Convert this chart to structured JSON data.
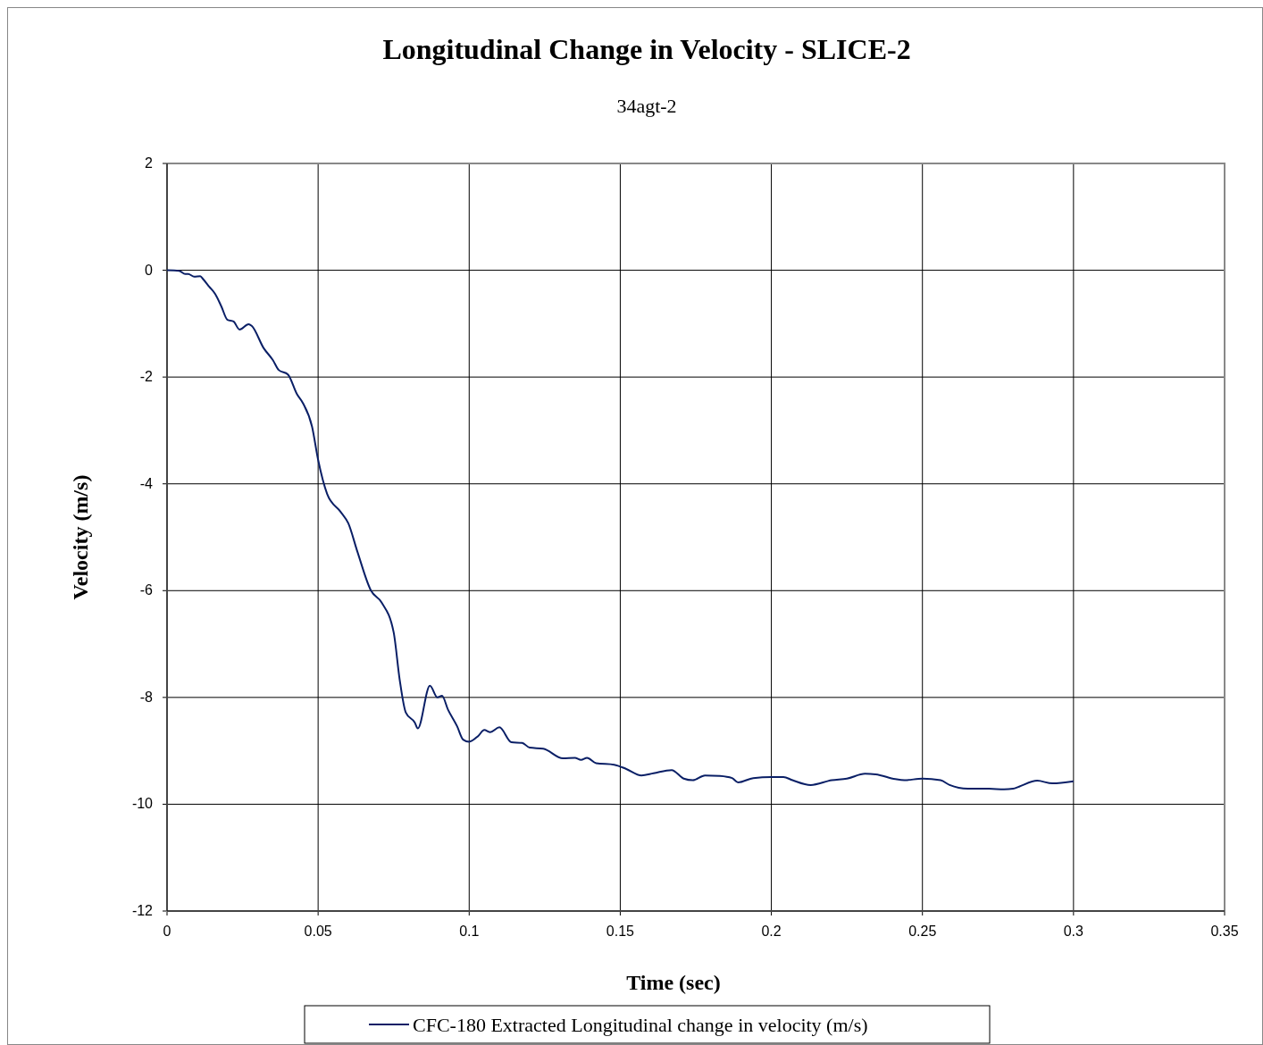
{
  "chart_data": {
    "type": "line",
    "title": "Longitudinal Change in Velocity - SLICE-2",
    "subtitle": "34agt-2",
    "xlabel": "Time (sec)",
    "ylabel": "Velocity (m/s)",
    "xlim": [
      0,
      0.35
    ],
    "xticks": [
      0,
      0.05,
      0.1,
      0.15,
      0.2,
      0.25,
      0.3,
      0.35
    ],
    "ylim": [
      -12,
      2
    ],
    "yticks": [
      -12,
      -10,
      -8,
      -6,
      -4,
      -2,
      0,
      2
    ],
    "grid": true,
    "legend": "bottom",
    "line_style": "solid",
    "series": [
      {
        "name": "CFC-180 Extracted Longitudinal change in velocity (m/s)",
        "color": "#0a1f66",
        "x": [
          0,
          0.004,
          0.006,
          0.007,
          0.009,
          0.011,
          0.012,
          0.014,
          0.016,
          0.018,
          0.02,
          0.022,
          0.024,
          0.027,
          0.028,
          0.032,
          0.035,
          0.037,
          0.04,
          0.043,
          0.045,
          0.048,
          0.05,
          0.053,
          0.0574,
          0.06,
          0.063,
          0.0675,
          0.071,
          0.075,
          0.077,
          0.079,
          0.082,
          0.083,
          0.087,
          0.0895,
          0.091,
          0.093,
          0.096,
          0.098,
          0.1,
          0.103,
          0.105,
          0.107,
          0.11,
          0.114,
          0.1175,
          0.12,
          0.1245,
          0.131,
          0.135,
          0.137,
          0.139,
          0.142,
          0.148,
          0.152,
          0.157,
          0.161,
          0.167,
          0.171,
          0.174,
          0.178,
          0.183,
          0.187,
          0.189,
          0.194,
          0.2,
          0.204,
          0.207,
          0.213,
          0.22,
          0.225,
          0.231,
          0.2345,
          0.241,
          0.244,
          0.25,
          0.256,
          0.259,
          0.265,
          0.272,
          0.277,
          0.28,
          0.282,
          0.288,
          0.293,
          0.3
        ],
        "values": [
          0,
          -0.01,
          -0.07,
          -0.07,
          -0.12,
          -0.11,
          -0.17,
          -0.31,
          -0.45,
          -0.68,
          -0.93,
          -0.96,
          -1.11,
          -1.01,
          -1.04,
          -1.46,
          -1.68,
          -1.87,
          -1.95,
          -2.32,
          -2.49,
          -2.93,
          -3.55,
          -4.19,
          -4.52,
          -4.74,
          -5.27,
          -6.0,
          -6.22,
          -6.78,
          -7.67,
          -8.28,
          -8.47,
          -8.58,
          -7.78,
          -8.0,
          -7.97,
          -8.23,
          -8.54,
          -8.79,
          -8.83,
          -8.72,
          -8.61,
          -8.65,
          -8.56,
          -8.84,
          -8.85,
          -8.94,
          -8.96,
          -9.14,
          -9.13,
          -9.17,
          -9.13,
          -9.23,
          -9.26,
          -9.34,
          -9.46,
          -9.42,
          -9.36,
          -9.52,
          -9.55,
          -9.46,
          -9.47,
          -9.51,
          -9.59,
          -9.51,
          -9.49,
          -9.49,
          -9.55,
          -9.64,
          -9.55,
          -9.52,
          -9.43,
          -9.44,
          -9.53,
          -9.55,
          -9.52,
          -9.55,
          -9.64,
          -9.71,
          -9.71,
          -9.72,
          -9.71,
          -9.67,
          -9.56,
          -9.61,
          -9.57
        ]
      }
    ]
  }
}
